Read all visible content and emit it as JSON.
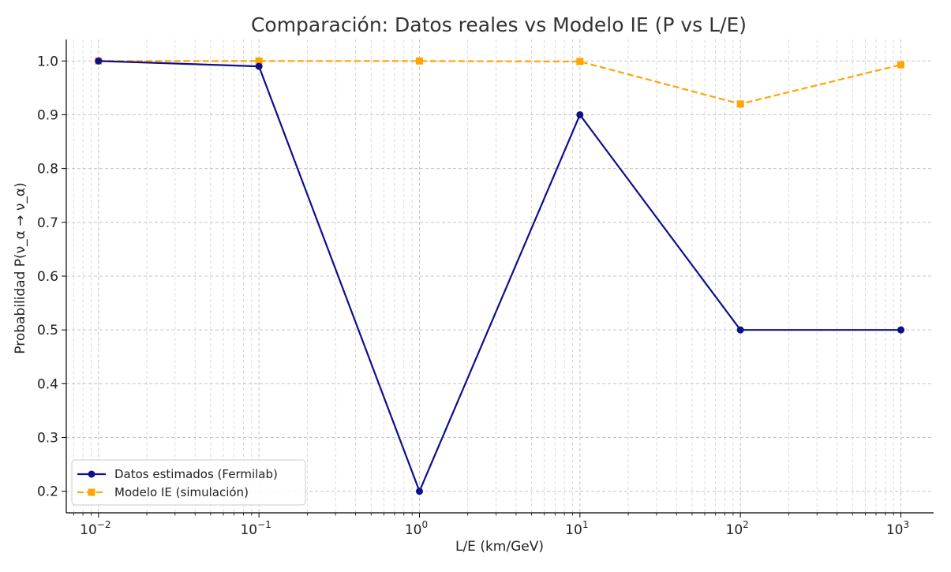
{
  "chart_data": {
    "type": "line",
    "title": "Comparación: Datos reales vs Modelo IE (P vs L/E)",
    "xlabel": "L/E (km/GeV)",
    "ylabel": "Probabilidad P(ν_α → ν_α)",
    "xscale": "log",
    "xlim": [
      0.0063,
      1600
    ],
    "ylim": [
      0.16,
      1.04
    ],
    "x_ticks": [
      0.01,
      0.1,
      1,
      10,
      100,
      1000
    ],
    "x_tick_labels": [
      {
        "base": "10",
        "exp": "−2"
      },
      {
        "base": "10",
        "exp": "−1"
      },
      {
        "base": "10",
        "exp": "0"
      },
      {
        "base": "10",
        "exp": "1"
      },
      {
        "base": "10",
        "exp": "2"
      },
      {
        "base": "10",
        "exp": "3"
      }
    ],
    "y_ticks": [
      0.2,
      0.3,
      0.4,
      0.5,
      0.6,
      0.7,
      0.8,
      0.9,
      1.0
    ],
    "y_tick_labels": [
      "0.2",
      "0.3",
      "0.4",
      "0.5",
      "0.6",
      "0.7",
      "0.8",
      "0.9",
      "1.0"
    ],
    "grid": true,
    "legend_position": "bottom-left",
    "series": [
      {
        "name": "Datos estimados (Fermilab)",
        "color": "#0d0f8c",
        "marker": "circle",
        "line_style": "solid",
        "x": [
          0.01,
          0.1,
          1,
          10,
          100,
          1000
        ],
        "y": [
          1.0,
          0.99,
          0.2,
          0.9,
          0.5,
          0.5
        ]
      },
      {
        "name": "Modelo IE (simulación)",
        "color": "#ffa500",
        "marker": "square",
        "line_style": "dashed",
        "x": [
          0.01,
          0.1,
          1,
          10,
          100,
          1000
        ],
        "y": [
          1.0,
          1.0,
          1.0,
          0.999,
          0.92,
          0.993
        ]
      }
    ]
  }
}
